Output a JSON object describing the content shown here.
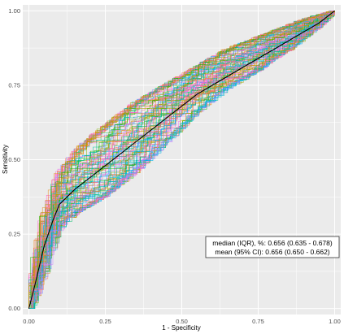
{
  "chart_data": {
    "type": "line",
    "title": "",
    "xlabel": "1 - Specificity",
    "ylabel": "Sensitivity",
    "xlim": [
      -0.02,
      1.02
    ],
    "ylim": [
      -0.02,
      1.02
    ],
    "xticks": [
      0.0,
      0.25,
      0.5,
      0.75,
      1.0
    ],
    "yticks": [
      0.0,
      0.25,
      0.5,
      0.75,
      1.0
    ],
    "xtick_labels": [
      "0.00",
      "0.25",
      "0.50",
      "0.75",
      "1.00"
    ],
    "ytick_labels": [
      "0.00",
      "0.25",
      "0.50",
      "0.75",
      "1.00"
    ],
    "grid": true,
    "legend": "none",
    "background_color": "#EBEBEB",
    "grid_color": "#FFFFFF",
    "bootstrap_curve_count": 100,
    "median_curve": {
      "color": "#000000",
      "x": [
        0.0,
        0.02,
        0.05,
        0.08,
        0.1,
        0.15,
        0.2,
        0.25,
        0.3,
        0.35,
        0.4,
        0.45,
        0.5,
        0.55,
        0.6,
        0.65,
        0.7,
        0.75,
        0.8,
        0.85,
        0.9,
        0.95,
        1.0
      ],
      "y": [
        0.0,
        0.08,
        0.21,
        0.3,
        0.35,
        0.4,
        0.44,
        0.48,
        0.52,
        0.56,
        0.6,
        0.64,
        0.68,
        0.72,
        0.75,
        0.78,
        0.81,
        0.84,
        0.87,
        0.9,
        0.93,
        0.96,
        1.0
      ]
    },
    "band": {
      "lower_y": [
        0.0,
        0.03,
        0.12,
        0.22,
        0.27,
        0.32,
        0.35,
        0.38,
        0.42,
        0.46,
        0.51,
        0.56,
        0.61,
        0.66,
        0.7,
        0.74,
        0.77,
        0.8,
        0.84,
        0.87,
        0.91,
        0.95,
        1.0
      ],
      "upper_y": [
        0.0,
        0.14,
        0.3,
        0.39,
        0.45,
        0.52,
        0.57,
        0.61,
        0.65,
        0.69,
        0.72,
        0.75,
        0.78,
        0.81,
        0.84,
        0.87,
        0.89,
        0.91,
        0.93,
        0.95,
        0.97,
        0.985,
        1.0
      ]
    },
    "palette": [
      "#F8766D",
      "#E68613",
      "#CD9600",
      "#ABA300",
      "#7CAE00",
      "#0CB702",
      "#00BE67",
      "#00C19A",
      "#00BFC4",
      "#00B8E7",
      "#00A9FF",
      "#8494FF",
      "#C77CFF",
      "#ED68ED",
      "#FF61CC",
      "#FF68A1"
    ],
    "annotation": {
      "line1": "median (IQR), %: 0.656 (0.635 - 0.678)",
      "line2": "mean (95% CI): 0.656 (0.650 - 0.662)"
    }
  }
}
